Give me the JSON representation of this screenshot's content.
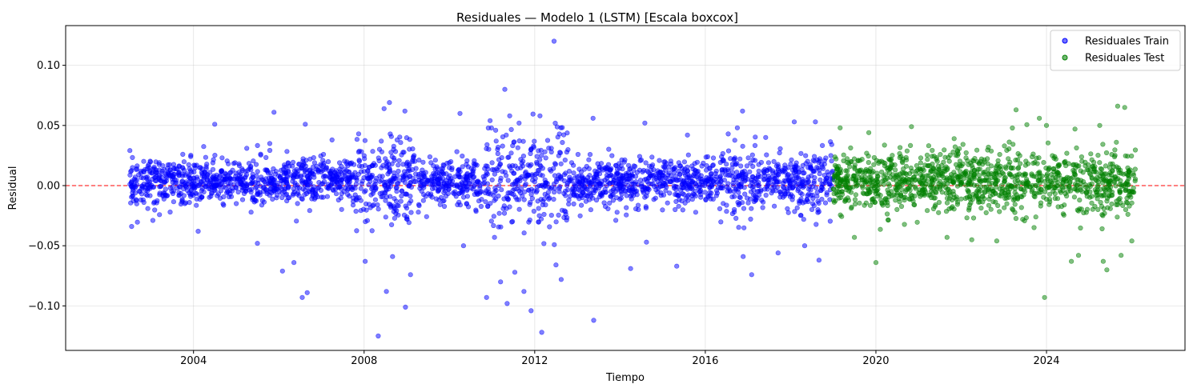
{
  "chart_data": {
    "type": "scatter",
    "title": "Residuales — Modelo 1 (LSTM) [Escala boxcox]",
    "xlabel": "Tiempo",
    "ylabel": "Residual",
    "x_type": "date",
    "xlim": [
      "2001-01-01",
      "2027-04-01"
    ],
    "ylim": [
      -0.137,
      0.133
    ],
    "x_ticks": [
      "2004",
      "2008",
      "2012",
      "2016",
      "2020",
      "2024"
    ],
    "y_ticks": [
      -0.1,
      -0.05,
      0.0,
      0.05,
      0.1
    ],
    "y_tick_labels": [
      "−0.10",
      "−0.05",
      "0.00",
      "0.05",
      "0.10"
    ],
    "grid": true,
    "legend": "top-right",
    "reference_line": {
      "y": 0,
      "color": "#ff0000",
      "style": "dashed"
    },
    "series": [
      {
        "name": "Residuales Train",
        "color": "#0000ff",
        "x_range": [
          "2002-07-01",
          "2018-12-31"
        ],
        "typical_spread": 0.012,
        "points": [
          {
            "x": "2002-07-20",
            "y": -0.034
          },
          {
            "x": "2002-09-01",
            "y": 0.014
          },
          {
            "x": "2003-06-15",
            "y": -0.022
          },
          {
            "x": "2003-10-01",
            "y": 0.026
          },
          {
            "x": "2004-02-10",
            "y": -0.038
          },
          {
            "x": "2004-07-01",
            "y": 0.051
          },
          {
            "x": "2005-04-01",
            "y": 0.031
          },
          {
            "x": "2005-07-01",
            "y": -0.048
          },
          {
            "x": "2005-10-15",
            "y": 0.035
          },
          {
            "x": "2005-11-20",
            "y": 0.061
          },
          {
            "x": "2006-02-01",
            "y": -0.071
          },
          {
            "x": "2006-05-10",
            "y": -0.064
          },
          {
            "x": "2006-07-20",
            "y": -0.093
          },
          {
            "x": "2006-08-15",
            "y": 0.051
          },
          {
            "x": "2006-09-01",
            "y": -0.089
          },
          {
            "x": "2007-04-01",
            "y": 0.038
          },
          {
            "x": "2007-11-15",
            "y": 0.043
          },
          {
            "x": "2008-01-10",
            "y": -0.063
          },
          {
            "x": "2008-05-01",
            "y": -0.125
          },
          {
            "x": "2008-06-20",
            "y": 0.064
          },
          {
            "x": "2008-07-10",
            "y": -0.088
          },
          {
            "x": "2008-08-05",
            "y": 0.069
          },
          {
            "x": "2008-09-01",
            "y": -0.059
          },
          {
            "x": "2008-12-15",
            "y": 0.062
          },
          {
            "x": "2008-12-20",
            "y": -0.101
          },
          {
            "x": "2009-02-01",
            "y": -0.074
          },
          {
            "x": "2010-04-01",
            "y": 0.06
          },
          {
            "x": "2010-05-01",
            "y": -0.05
          },
          {
            "x": "2010-11-15",
            "y": -0.093
          },
          {
            "x": "2010-12-15",
            "y": 0.054
          },
          {
            "x": "2011-02-01",
            "y": 0.046
          },
          {
            "x": "2011-03-15",
            "y": -0.08
          },
          {
            "x": "2011-04-20",
            "y": 0.08
          },
          {
            "x": "2011-05-10",
            "y": -0.098
          },
          {
            "x": "2011-06-01",
            "y": 0.058
          },
          {
            "x": "2011-07-15",
            "y": -0.072
          },
          {
            "x": "2011-08-20",
            "y": 0.052
          },
          {
            "x": "2011-10-01",
            "y": -0.088
          },
          {
            "x": "2011-12-01",
            "y": -0.104
          },
          {
            "x": "2012-02-15",
            "y": 0.058
          },
          {
            "x": "2012-03-01",
            "y": -0.122
          },
          {
            "x": "2012-06-15",
            "y": 0.12
          },
          {
            "x": "2012-07-01",
            "y": -0.066
          },
          {
            "x": "2012-08-15",
            "y": -0.078
          },
          {
            "x": "2013-05-20",
            "y": -0.112
          },
          {
            "x": "2013-05-15",
            "y": 0.056
          },
          {
            "x": "2014-04-01",
            "y": -0.069
          },
          {
            "x": "2014-08-01",
            "y": 0.052
          },
          {
            "x": "2014-08-15",
            "y": -0.047
          },
          {
            "x": "2015-05-01",
            "y": -0.067
          },
          {
            "x": "2015-08-01",
            "y": 0.042
          },
          {
            "x": "2016-10-01",
            "y": 0.048
          },
          {
            "x": "2016-11-15",
            "y": 0.062
          },
          {
            "x": "2016-11-20",
            "y": -0.059
          },
          {
            "x": "2017-02-01",
            "y": -0.074
          },
          {
            "x": "2017-06-01",
            "y": 0.04
          },
          {
            "x": "2017-09-15",
            "y": -0.056
          },
          {
            "x": "2018-02-01",
            "y": 0.053
          },
          {
            "x": "2018-05-01",
            "y": -0.05
          },
          {
            "x": "2018-08-01",
            "y": 0.053
          },
          {
            "x": "2018-09-01",
            "y": -0.062
          }
        ]
      },
      {
        "name": "Residuales Test",
        "color": "#008000",
        "x_range": [
          "2019-01-01",
          "2026-02-01"
        ],
        "typical_spread": 0.012,
        "points": [
          {
            "x": "2019-03-01",
            "y": 0.048
          },
          {
            "x": "2019-07-01",
            "y": -0.043
          },
          {
            "x": "2019-11-01",
            "y": 0.044
          },
          {
            "x": "2020-01-01",
            "y": -0.064
          },
          {
            "x": "2020-11-01",
            "y": 0.049
          },
          {
            "x": "2021-09-01",
            "y": -0.043
          },
          {
            "x": "2021-11-01",
            "y": 0.039
          },
          {
            "x": "2022-04-01",
            "y": -0.045
          },
          {
            "x": "2022-11-01",
            "y": -0.046
          },
          {
            "x": "2023-04-15",
            "y": 0.063
          },
          {
            "x": "2023-11-01",
            "y": 0.056
          },
          {
            "x": "2023-12-15",
            "y": -0.093
          },
          {
            "x": "2024-01-01",
            "y": 0.05
          },
          {
            "x": "2024-08-01",
            "y": -0.063
          },
          {
            "x": "2024-09-01",
            "y": 0.047
          },
          {
            "x": "2024-10-01",
            "y": -0.058
          },
          {
            "x": "2025-04-01",
            "y": 0.05
          },
          {
            "x": "2025-05-01",
            "y": -0.063
          },
          {
            "x": "2025-06-01",
            "y": -0.07
          },
          {
            "x": "2025-09-01",
            "y": 0.066
          },
          {
            "x": "2025-10-01",
            "y": -0.058
          },
          {
            "x": "2025-11-01",
            "y": 0.065
          },
          {
            "x": "2026-01-01",
            "y": -0.046
          }
        ]
      }
    ]
  }
}
